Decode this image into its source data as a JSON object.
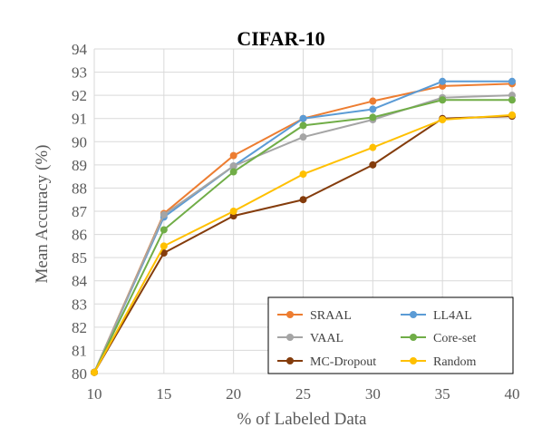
{
  "chart_data": {
    "type": "line",
    "title": "CIFAR-10",
    "xlabel": "% of Labeled Data",
    "ylabel": "Mean Accuracy (%)",
    "x": [
      10,
      15,
      20,
      25,
      30,
      35,
      40
    ],
    "xlim": [
      10,
      40
    ],
    "ylim": [
      80,
      94
    ],
    "yticks": [
      80,
      81,
      82,
      83,
      84,
      85,
      86,
      87,
      88,
      89,
      90,
      91,
      92,
      93,
      94
    ],
    "grid": true,
    "legend_position": "bottom-right",
    "series": [
      {
        "name": "SRAAL",
        "color": "#ED7D31",
        "values": [
          80.05,
          86.9,
          89.4,
          91.0,
          91.75,
          92.4,
          92.5
        ]
      },
      {
        "name": "LL4AL",
        "color": "#5B9BD5",
        "values": [
          80.05,
          86.75,
          88.95,
          91.0,
          91.4,
          92.6,
          92.6
        ]
      },
      {
        "name": "VAAL",
        "color": "#A5A5A5",
        "values": [
          80.05,
          86.85,
          88.95,
          90.2,
          90.95,
          91.9,
          92.0
        ]
      },
      {
        "name": "Core-set",
        "color": "#70AD47",
        "values": [
          80.05,
          86.2,
          88.7,
          90.7,
          91.05,
          91.8,
          91.8
        ]
      },
      {
        "name": "MC-Dropout",
        "color": "#843C0C",
        "values": [
          80.05,
          85.2,
          86.8,
          87.5,
          89.0,
          91.0,
          91.1
        ]
      },
      {
        "name": "Random",
        "color": "#FFC000",
        "values": [
          80.05,
          85.5,
          87.0,
          88.6,
          89.75,
          90.95,
          91.15
        ]
      }
    ]
  }
}
